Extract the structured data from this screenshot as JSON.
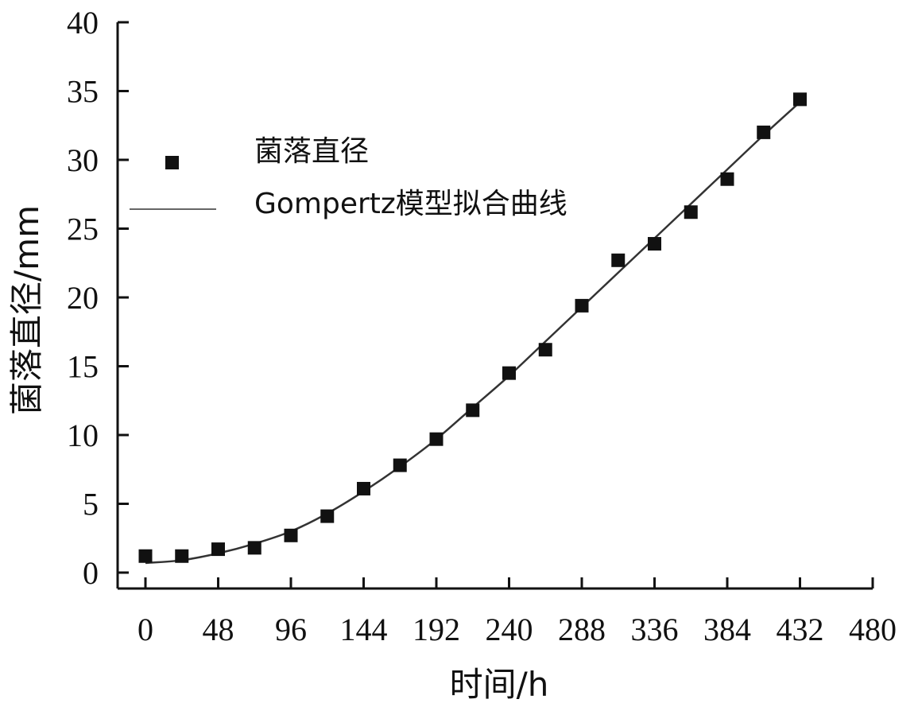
{
  "chart_data": {
    "type": "scatter",
    "xlabel": "时间/h",
    "ylabel": "菌落直径/mm",
    "xlim": [
      -20,
      480
    ],
    "ylim": [
      0,
      40
    ],
    "x_ticks": [
      0,
      48,
      96,
      144,
      192,
      240,
      288,
      336,
      384,
      432,
      480
    ],
    "x_tick_labels": [
      "0",
      "48",
      "96",
      "144",
      "192",
      "240",
      "288",
      "336",
      "384",
      "432",
      "480"
    ],
    "y_ticks": [
      0,
      5,
      10,
      15,
      20,
      25,
      30,
      35,
      40
    ],
    "y_tick_labels": [
      "0",
      "5",
      "10",
      "15",
      "20",
      "25",
      "30",
      "35",
      "40"
    ],
    "legend_position": "top-left",
    "series": [
      {
        "name": "菌落直径",
        "kind": "markers",
        "marker": "square",
        "color": "#111111",
        "x": [
          0,
          24,
          48,
          72,
          96,
          120,
          144,
          168,
          192,
          216,
          240,
          264,
          288,
          312,
          336,
          360,
          384,
          408,
          432
        ],
        "y": [
          1.2,
          1.2,
          1.7,
          1.8,
          2.7,
          4.1,
          6.1,
          7.8,
          9.7,
          11.8,
          14.5,
          16.2,
          19.4,
          22.7,
          23.9,
          26.2,
          28.6,
          32.0,
          34.4
        ]
      },
      {
        "name": "Gompertz模型拟合曲线",
        "kind": "line",
        "color": "#333333",
        "x": [
          0,
          24,
          48,
          72,
          96,
          120,
          144,
          168,
          192,
          216,
          240,
          264,
          288,
          312,
          336,
          360,
          384,
          408,
          432
        ],
        "y": [
          0.7,
          0.9,
          1.4,
          2.1,
          3.0,
          4.3,
          5.9,
          7.7,
          9.7,
          12.0,
          14.3,
          16.8,
          19.3,
          21.8,
          24.3,
          26.8,
          29.3,
          31.8,
          34.2
        ]
      }
    ]
  }
}
